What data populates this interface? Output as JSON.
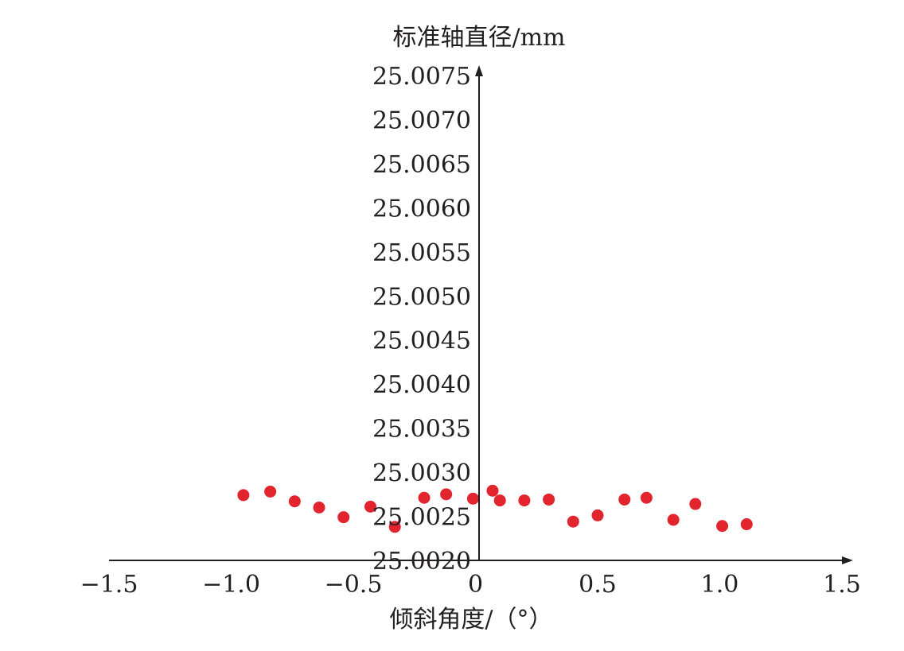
{
  "chart_data": {
    "type": "scatter",
    "xlabel": "倾斜角度/（°）",
    "ylabel": "标准轴直径/mm",
    "xlim": [
      -1.5,
      1.5
    ],
    "ylim": [
      25.002,
      25.0075
    ],
    "x_ticks": [
      -1.5,
      -1.0,
      -0.5,
      0,
      0.5,
      1.0,
      1.5
    ],
    "x_tick_labels": [
      "−1.5",
      "−1.0",
      "−0.5",
      "0",
      "0.5",
      "1.0",
      "1.5"
    ],
    "y_ticks": [
      25.0075,
      25.007,
      25.0065,
      25.006,
      25.0055,
      25.005,
      25.0045,
      25.004,
      25.0035,
      25.003,
      25.0025,
      25.002
    ],
    "y_tick_labels": [
      "25.0075",
      "25.0070",
      "25.0065",
      "25.0060",
      "25.0055",
      "25.0050",
      "25.0045",
      "25.0040",
      "25.0035",
      "25.0030",
      "25.0025",
      "25.0020"
    ],
    "grid": false,
    "point_color": "#e1242d",
    "series": [
      {
        "x": [
          -0.95,
          -0.84,
          -0.74,
          -0.64,
          -0.54,
          -0.43,
          -0.33,
          -0.21,
          -0.12,
          -0.01,
          0.07,
          0.1,
          0.2,
          0.3,
          0.4,
          0.5,
          0.61,
          0.7,
          0.81,
          0.9,
          1.01,
          1.11
        ],
        "y": [
          25.00274,
          25.00278,
          25.00267,
          25.0026,
          25.00249,
          25.00261,
          25.00238,
          25.00271,
          25.00275,
          25.0027,
          25.00279,
          25.00268,
          25.00268,
          25.00269,
          25.00244,
          25.00251,
          25.00269,
          25.00271,
          25.00246,
          25.00264,
          25.00239,
          25.00241
        ]
      }
    ]
  }
}
